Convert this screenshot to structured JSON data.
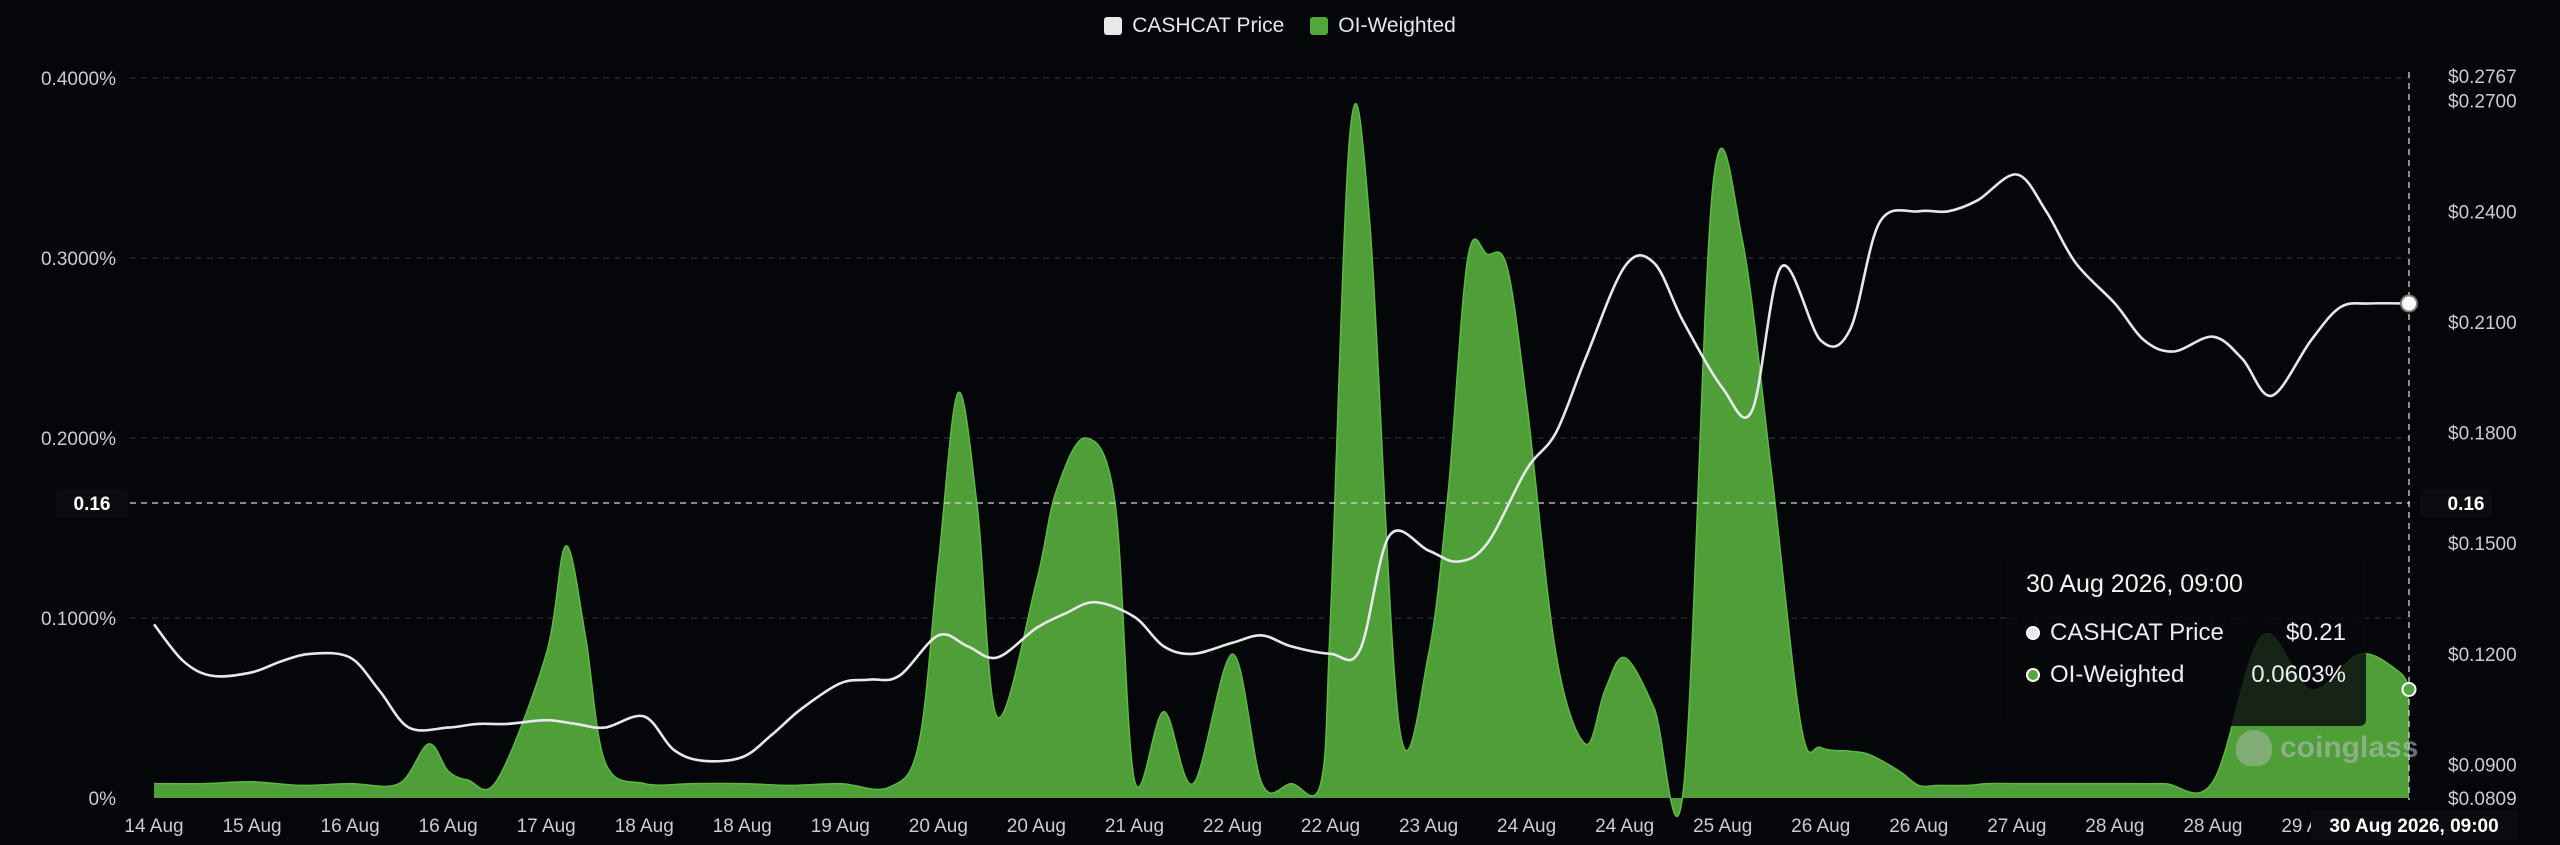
{
  "legend": {
    "price_label": "CASHCAT Price",
    "price_color": "#e8e8ea",
    "oi_label": "OI-Weighted",
    "oi_color": "#52a83b"
  },
  "crosshair": {
    "left_label": "0.16",
    "right_label": "0.16"
  },
  "tooltip": {
    "title": "30 Aug 2026, 09:00",
    "price_name": "CASHCAT Price",
    "price_value": "$0.21",
    "oi_name": "OI-Weighted",
    "oi_value": "0.0603%"
  },
  "watermark": "coinglass",
  "chart_data": {
    "type": "area",
    "x_ticks": [
      "14 Aug",
      "15 Aug",
      "16 Aug",
      "16 Aug",
      "17 Aug",
      "18 Aug",
      "18 Aug",
      "19 Aug",
      "20 Aug",
      "20 Aug",
      "21 Aug",
      "22 Aug",
      "22 Aug",
      "23 Aug",
      "24 Aug",
      "24 Aug",
      "25 Aug",
      "26 Aug",
      "26 Aug",
      "27 Aug",
      "28 Aug",
      "28 Aug",
      "29 Aug",
      "30 Aug 2026, 09:00"
    ],
    "y_left_ticks": [
      "0%",
      "0.1000%",
      "0.2000%",
      "0.3000%",
      "0.4000%"
    ],
    "y_left_values": [
      0,
      0.1,
      0.2,
      0.3,
      0.4
    ],
    "y_left_range": [
      0,
      0.4
    ],
    "y_right_ticks": [
      "$0.0809",
      "$0.0900",
      "$0.1200",
      "$0.1500",
      "$0.1800",
      "$0.2100",
      "$0.2400",
      "$0.2700",
      "$0.2767"
    ],
    "y_right_values": [
      0.0809,
      0.09,
      0.12,
      0.15,
      0.18,
      0.21,
      0.24,
      0.27,
      0.2767
    ],
    "y_right_range": [
      0.0809,
      0.2767
    ],
    "grid": true,
    "legend_position": "top-center",
    "series": [
      {
        "name": "OI-Weighted",
        "axis": "left",
        "x": [
          0,
          0.5,
          1,
          1.5,
          2,
          2.5,
          2.8,
          3,
          3.2,
          3.5,
          4,
          4.2,
          4.4,
          4.6,
          5,
          5.5,
          6,
          6.5,
          7,
          7.5,
          7.8,
          8,
          8.2,
          8.4,
          8.6,
          9,
          9.2,
          9.5,
          9.8,
          10,
          10.3,
          10.6,
          11,
          11.3,
          11.6,
          11.9,
          12,
          12.2,
          12.4,
          12.7,
          13,
          13.2,
          13.4,
          13.6,
          13.8,
          14,
          14.3,
          14.6,
          14.8,
          15,
          15.3,
          15.6,
          15.9,
          16.2,
          16.5,
          16.8,
          17,
          17.3,
          17.5,
          17.8,
          18,
          18.2,
          18.5,
          18.7,
          19,
          19.5,
          20,
          20.5,
          21,
          21.5,
          22,
          22.5,
          22.9,
          23
        ],
        "values": [
          0.008,
          0.008,
          0.009,
          0.007,
          0.008,
          0.008,
          0.03,
          0.015,
          0.01,
          0.01,
          0.08,
          0.14,
          0.09,
          0.02,
          0.008,
          0.008,
          0.008,
          0.007,
          0.008,
          0.006,
          0.03,
          0.13,
          0.225,
          0.16,
          0.045,
          0.12,
          0.17,
          0.2,
          0.165,
          0.01,
          0.048,
          0.008,
          0.08,
          0.008,
          0.008,
          0.008,
          0.1,
          0.37,
          0.32,
          0.04,
          0.08,
          0.17,
          0.3,
          0.302,
          0.295,
          0.22,
          0.08,
          0.03,
          0.06,
          0.078,
          0.05,
          0.005,
          0.34,
          0.31,
          0.18,
          0.04,
          0.028,
          0.026,
          0.024,
          0.015,
          0.007,
          0.007,
          0.007,
          0.008,
          0.008,
          0.008,
          0.008,
          0.008,
          0.009,
          0.09,
          0.06,
          0.08,
          0.07,
          0.0603
        ]
      },
      {
        "name": "CASHCAT Price",
        "axis": "right",
        "x": [
          0,
          0.3,
          0.6,
          1,
          1.3,
          1.6,
          2,
          2.3,
          2.6,
          3,
          3.3,
          3.6,
          4,
          4.3,
          4.6,
          5,
          5.3,
          5.6,
          6,
          6.3,
          6.6,
          7,
          7.3,
          7.6,
          8,
          8.3,
          8.6,
          9,
          9.3,
          9.6,
          10,
          10.3,
          10.6,
          11,
          11.3,
          11.6,
          12,
          12.3,
          12.6,
          13,
          13.3,
          13.6,
          14,
          14.3,
          14.6,
          15,
          15.3,
          15.6,
          16,
          16.3,
          16.6,
          17,
          17.3,
          17.6,
          18,
          18.3,
          18.6,
          19,
          19.3,
          19.6,
          20,
          20.3,
          20.6,
          21,
          21.3,
          21.6,
          22,
          22.3,
          22.6,
          23
        ],
        "values": [
          0.128,
          0.118,
          0.114,
          0.115,
          0.118,
          0.12,
          0.119,
          0.11,
          0.1,
          0.1,
          0.101,
          0.101,
          0.102,
          0.101,
          0.1,
          0.103,
          0.094,
          0.091,
          0.092,
          0.098,
          0.105,
          0.112,
          0.113,
          0.114,
          0.125,
          0.122,
          0.119,
          0.127,
          0.131,
          0.134,
          0.13,
          0.122,
          0.12,
          0.123,
          0.125,
          0.122,
          0.12,
          0.121,
          0.152,
          0.148,
          0.145,
          0.15,
          0.17,
          0.18,
          0.2,
          0.225,
          0.226,
          0.21,
          0.192,
          0.186,
          0.225,
          0.205,
          0.208,
          0.237,
          0.24,
          0.24,
          0.243,
          0.25,
          0.24,
          0.226,
          0.215,
          0.205,
          0.202,
          0.206,
          0.2,
          0.19,
          0.205,
          0.214,
          0.215,
          0.215
        ]
      }
    ]
  }
}
